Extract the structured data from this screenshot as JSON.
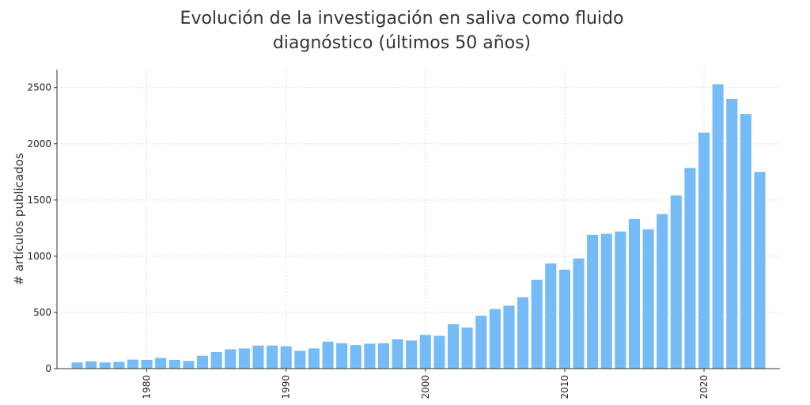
{
  "chart_data": {
    "type": "bar",
    "title_lines": [
      "Evolución de la investigación en saliva como fluido",
      "diagnóstico (últimos 50 años)"
    ],
    "xlabel": "",
    "ylabel": "# artículos publicados",
    "x": [
      1975,
      1976,
      1977,
      1978,
      1979,
      1980,
      1981,
      1982,
      1983,
      1984,
      1985,
      1986,
      1987,
      1988,
      1989,
      1990,
      1991,
      1992,
      1993,
      1994,
      1995,
      1996,
      1997,
      1998,
      1999,
      2000,
      2001,
      2002,
      2003,
      2004,
      2005,
      2006,
      2007,
      2008,
      2009,
      2010,
      2011,
      2012,
      2013,
      2014,
      2015,
      2016,
      2017,
      2018,
      2019,
      2020,
      2021,
      2022,
      2023,
      2024
    ],
    "values": [
      55,
      65,
      55,
      60,
      80,
      78,
      95,
      78,
      68,
      115,
      148,
      172,
      180,
      205,
      205,
      198,
      158,
      180,
      240,
      225,
      210,
      222,
      225,
      260,
      250,
      300,
      292,
      395,
      365,
      470,
      530,
      560,
      635,
      790,
      935,
      880,
      980,
      1190,
      1200,
      1220,
      1330,
      1240,
      1375,
      1540,
      1785,
      2100,
      2530,
      2400,
      2265,
      1750
    ],
    "xticks": [
      1980,
      1990,
      2000,
      2010,
      2020
    ],
    "yticks": [
      0,
      500,
      1000,
      1500,
      2000,
      2500
    ],
    "ylim": [
      0,
      2660
    ],
    "xlim": [
      1973.55,
      2025.45
    ],
    "grid": true,
    "bar_color": "#74bbf7"
  }
}
